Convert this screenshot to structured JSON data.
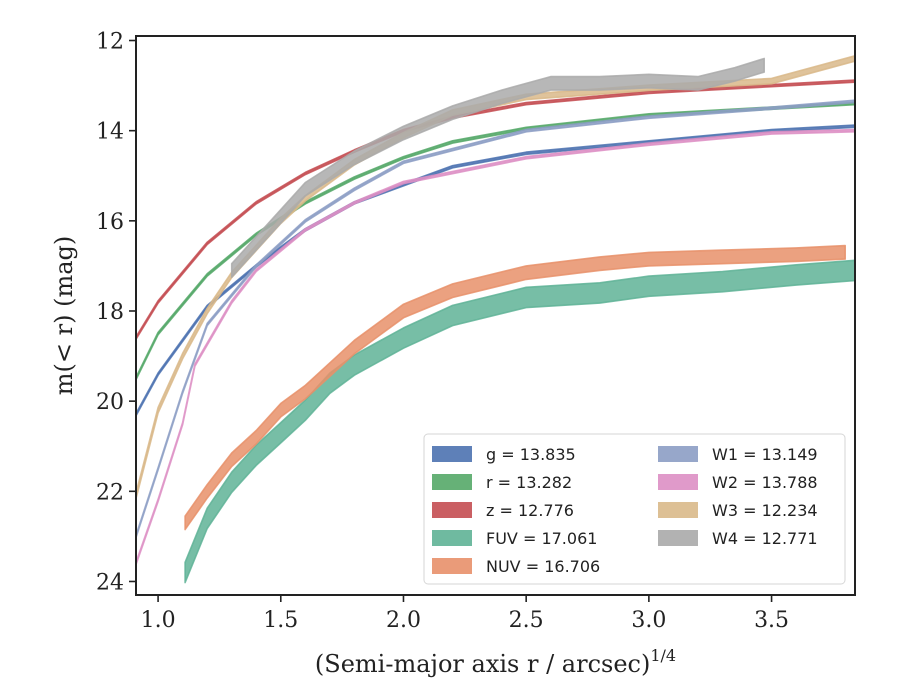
{
  "chart_data": {
    "type": "line",
    "xlabel": "(Semi-major axis r / arcsec)^{1/4}",
    "xlabel_main": "(Semi-major axis r / arcsec)",
    "xlabel_sup": "1/4",
    "ylabel": "m(< r) (mag)",
    "xlim": [
      0.91,
      3.84
    ],
    "ylim": [
      24.3,
      11.9
    ],
    "y_inverted": true,
    "xticks": [
      1.0,
      1.5,
      2.0,
      2.5,
      3.0,
      3.5
    ],
    "xtick_labels": [
      "1.0",
      "1.5",
      "2.0",
      "2.5",
      "3.0",
      "3.5"
    ],
    "yticks": [
      12,
      14,
      16,
      18,
      20,
      22,
      24
    ],
    "ytick_labels": [
      "12",
      "14",
      "16",
      "18",
      "20",
      "22",
      "24"
    ],
    "grid": false,
    "legend_position": "lower-right",
    "series": [
      {
        "name": "g = 13.835",
        "color": "#4c72b0",
        "band": 0.05,
        "x": [
          0.91,
          1.0,
          1.2,
          1.4,
          1.6,
          1.8,
          2.0,
          2.2,
          2.5,
          3.0,
          3.5,
          3.84
        ],
        "y": [
          20.3,
          19.4,
          17.9,
          17.0,
          16.2,
          15.6,
          15.2,
          14.8,
          14.5,
          14.25,
          14.0,
          13.9
        ]
      },
      {
        "name": "r = 13.282",
        "color": "#55a868",
        "band": 0.05,
        "x": [
          0.91,
          1.0,
          1.2,
          1.4,
          1.6,
          1.8,
          2.0,
          2.2,
          2.5,
          3.0,
          3.5,
          3.84
        ],
        "y": [
          19.5,
          18.5,
          17.2,
          16.3,
          15.6,
          15.05,
          14.6,
          14.25,
          13.95,
          13.65,
          13.5,
          13.4
        ]
      },
      {
        "name": "z = 12.776",
        "color": "#c44e52",
        "band": 0.05,
        "x": [
          0.91,
          1.0,
          1.2,
          1.4,
          1.6,
          1.8,
          2.0,
          2.2,
          2.5,
          3.0,
          3.5,
          3.84
        ],
        "y": [
          18.6,
          17.8,
          16.5,
          15.6,
          14.95,
          14.45,
          14.0,
          13.7,
          13.4,
          13.15,
          13.0,
          12.9
        ]
      },
      {
        "name": "FUV = 17.061",
        "color": "#5fb396",
        "band": 0.45,
        "x": [
          1.11,
          1.2,
          1.3,
          1.4,
          1.5,
          1.6,
          1.7,
          1.8,
          2.0,
          2.2,
          2.5,
          2.8,
          3.0,
          3.3,
          3.6,
          3.84
        ],
        "y": [
          23.8,
          22.6,
          21.8,
          21.2,
          20.7,
          20.2,
          19.6,
          19.2,
          18.6,
          18.1,
          17.7,
          17.6,
          17.45,
          17.35,
          17.2,
          17.1
        ]
      },
      {
        "name": "NUV = 16.706",
        "color": "#e8906a",
        "band": 0.3,
        "x": [
          1.11,
          1.2,
          1.3,
          1.4,
          1.5,
          1.6,
          1.7,
          1.8,
          2.0,
          2.2,
          2.5,
          2.8,
          3.0,
          3.3,
          3.6,
          3.8
        ],
        "y": [
          22.7,
          22.0,
          21.3,
          20.8,
          20.2,
          19.8,
          19.3,
          18.8,
          18.0,
          17.55,
          17.15,
          16.95,
          16.85,
          16.8,
          16.75,
          16.7
        ]
      },
      {
        "name": "W1 = 13.149",
        "color": "#8c9dc4",
        "band": 0.05,
        "x": [
          0.91,
          1.0,
          1.1,
          1.2,
          1.4,
          1.6,
          1.8,
          2.0,
          2.5,
          3.0,
          3.5,
          3.84
        ],
        "y": [
          23.0,
          21.5,
          19.8,
          18.3,
          17.0,
          16.0,
          15.3,
          14.7,
          14.0,
          13.7,
          13.5,
          13.35
        ]
      },
      {
        "name": "W2 = 13.788",
        "color": "#dd8fc4",
        "band": 0.05,
        "x": [
          0.91,
          1.0,
          1.1,
          1.15,
          1.3,
          1.4,
          1.6,
          1.8,
          2.0,
          2.5,
          3.0,
          3.5,
          3.84
        ],
        "y": [
          23.6,
          22.2,
          20.5,
          19.2,
          17.8,
          17.1,
          16.2,
          15.6,
          15.15,
          14.6,
          14.3,
          14.05,
          14.0
        ]
      },
      {
        "name": "W3 = 12.234",
        "color": "#d9b98a",
        "band": 0.12,
        "x": [
          0.91,
          1.0,
          1.1,
          1.2,
          1.3,
          1.4,
          1.5,
          1.6,
          1.8,
          2.0,
          2.2,
          2.5,
          3.0,
          3.5,
          3.84
        ],
        "y": [
          22.1,
          20.2,
          19.0,
          18.0,
          17.2,
          16.6,
          16.0,
          15.5,
          14.7,
          14.1,
          13.6,
          13.25,
          13.05,
          12.9,
          12.4
        ]
      },
      {
        "name": "W4 = 12.771",
        "color": "#aaaaaa",
        "band": 0.3,
        "x": [
          1.3,
          1.4,
          1.5,
          1.6,
          1.8,
          2.0,
          2.2,
          2.4,
          2.6,
          2.8,
          3.0,
          3.2,
          3.35,
          3.47
        ],
        "y": [
          17.1,
          16.5,
          15.9,
          15.3,
          14.6,
          14.05,
          13.6,
          13.25,
          12.95,
          12.95,
          12.9,
          12.95,
          12.75,
          12.55
        ]
      }
    ]
  }
}
